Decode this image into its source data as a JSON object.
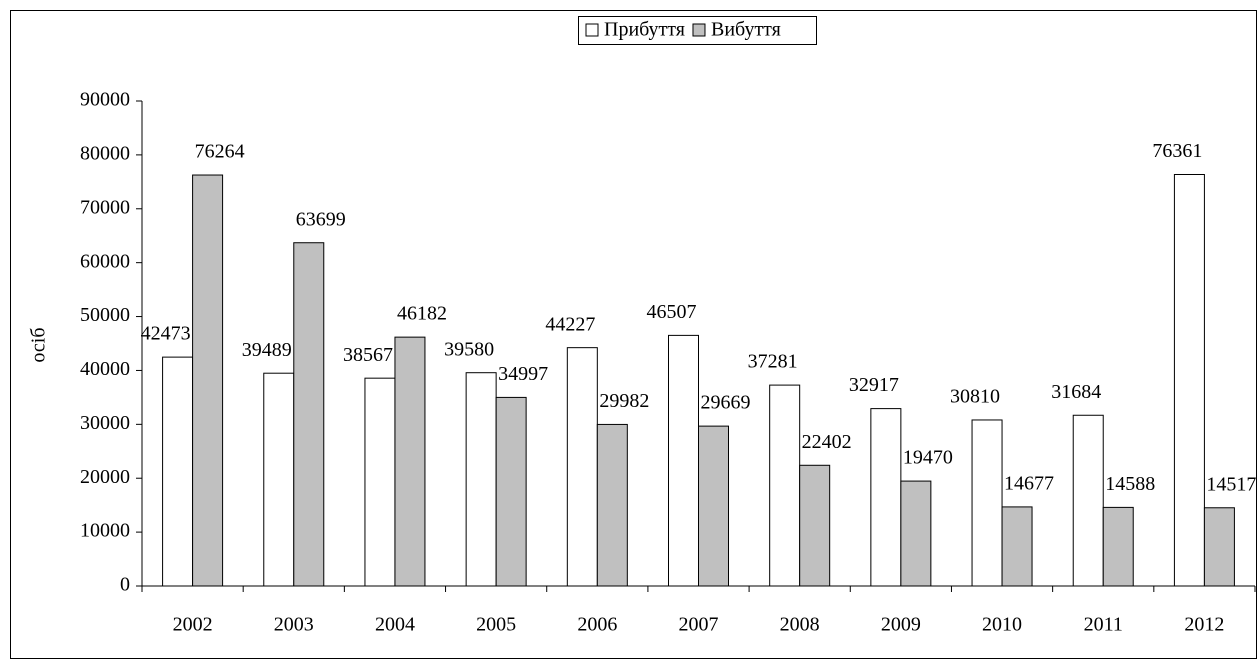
{
  "chart_data": {
    "type": "bar",
    "y_label": "осіб",
    "categories": [
      "2002",
      "2003",
      "2004",
      "2005",
      "2006",
      "2007",
      "2008",
      "2009",
      "2010",
      "2011",
      "2012"
    ],
    "series": [
      {
        "name": "Прибуття",
        "color": "#ffffff",
        "values": [
          42473,
          39489,
          38567,
          39580,
          44227,
          46507,
          37281,
          32917,
          30810,
          31684,
          76361
        ]
      },
      {
        "name": "Вибуття",
        "color": "#c0c0c0",
        "values": [
          76264,
          63699,
          46182,
          34997,
          29982,
          29669,
          22402,
          19470,
          14677,
          14588,
          14517
        ]
      }
    ],
    "ylim": [
      0,
      90000
    ],
    "yticks": [
      0,
      10000,
      20000,
      30000,
      40000,
      50000,
      60000,
      70000,
      80000,
      90000
    ],
    "legend": "top"
  }
}
